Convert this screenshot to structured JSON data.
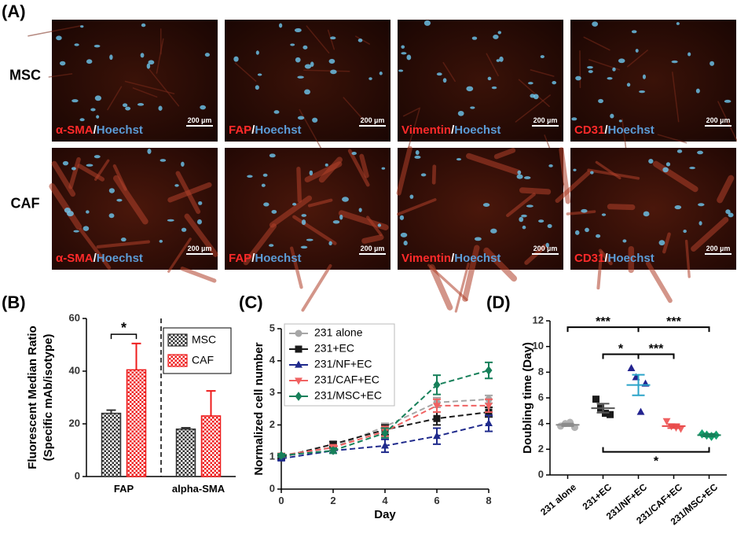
{
  "figure": {
    "label": "(A)",
    "rows": [
      "MSC",
      "CAF"
    ],
    "images": [
      [
        {
          "marker": "α-SMA",
          "separator": "/",
          "stain": "Hoechst",
          "scale": "200 µm"
        },
        {
          "marker": "FAP",
          "separator": "/",
          "stain": "Hoechst",
          "scale": "200 µm"
        },
        {
          "marker": "Vimentin",
          "separator": "/",
          "stain": "Hoechst",
          "scale": "200 µm"
        },
        {
          "marker": "CD31",
          "separator": "/",
          "stain": "Hoechst",
          "scale": "200 µm"
        }
      ],
      [
        {
          "marker": "α-SMA",
          "separator": "/",
          "stain": "Hoechst",
          "scale": "200 µm"
        },
        {
          "marker": "FAP",
          "separator": "/",
          "stain": "Hoechst",
          "scale": "200 µm"
        },
        {
          "marker": "Vimentin",
          "separator": "/",
          "stain": "Hoechst",
          "scale": "200 µm"
        },
        {
          "marker": "CD31",
          "separator": "/",
          "stain": "Hoechst",
          "scale": "200 µm"
        }
      ]
    ]
  },
  "chart_data": [
    {
      "type": "bar",
      "panel_label": "(B)",
      "ylabel": [
        "Fluorescent Median Ratio",
        "(Specific mAb/isotype)"
      ],
      "categories": [
        "FAP",
        "alpha-SMA"
      ],
      "series": [
        {
          "name": "MSC",
          "color": "#333333",
          "values": [
            24,
            18
          ],
          "errors": [
            1.2,
            0.5
          ]
        },
        {
          "name": "CAF",
          "color": "#ee1c1c",
          "values": [
            40.5,
            23
          ],
          "errors": [
            10,
            9.5
          ]
        }
      ],
      "ylim": [
        0,
        60
      ],
      "yticks": [
        0,
        20,
        40,
        60
      ],
      "legend": "upper right",
      "divider": true,
      "annotations": [
        {
          "label": "*",
          "y": 54,
          "category": 0
        }
      ]
    },
    {
      "type": "line",
      "panel_label": "(C)",
      "xlabel": "Day",
      "ylabel": "Normalized cell number",
      "x": [
        0,
        2,
        4,
        6,
        8
      ],
      "series": [
        {
          "name": "231 alone",
          "color": "#a6a6a6",
          "marker": "circle",
          "values": [
            1.0,
            1.3,
            1.95,
            2.7,
            2.8
          ],
          "errors": [
            0.05,
            0.1,
            0.1,
            0.15,
            0.12
          ]
        },
        {
          "name": "231+EC",
          "color": "#1a1a1a",
          "marker": "square",
          "values": [
            1.0,
            1.4,
            1.85,
            2.2,
            2.4
          ],
          "errors": [
            0.05,
            0.08,
            0.15,
            0.2,
            0.15
          ]
        },
        {
          "name": "231/NF+EC",
          "color": "#1f2a8c",
          "marker": "triangle",
          "values": [
            0.95,
            1.2,
            1.35,
            1.65,
            2.05
          ],
          "errors": [
            0.05,
            0.08,
            0.2,
            0.25,
            0.25
          ]
        },
        {
          "name": "231/CAF+EC",
          "color": "#f06262",
          "marker": "triangle-down",
          "values": [
            1.05,
            1.3,
            1.8,
            2.6,
            2.6
          ],
          "errors": [
            0.05,
            0.08,
            0.15,
            0.2,
            0.2
          ]
        },
        {
          "name": "231/MSC+EC",
          "color": "#17805a",
          "marker": "diamond",
          "values": [
            1.05,
            1.2,
            1.75,
            3.25,
            3.7
          ],
          "errors": [
            0.05,
            0.08,
            0.15,
            0.3,
            0.25
          ]
        }
      ],
      "xlim": [
        0,
        8
      ],
      "xticks": [
        0,
        2,
        4,
        6,
        8
      ],
      "ylim": [
        0,
        5
      ],
      "yticks": [
        0,
        1,
        2,
        3,
        4,
        5
      ],
      "legend": "upper left"
    },
    {
      "type": "dotplot",
      "panel_label": "(D)",
      "ylabel": "Doubling time (Day)",
      "categories": [
        "231 alone",
        "231+EC",
        "231/NF+EC",
        "231/CAF+EC",
        "231/MSC+EC"
      ],
      "groups": [
        {
          "color": "#b3b3b3",
          "line_color": "#8c8c8c",
          "marker": "circle",
          "values": [
            3.8,
            4.0,
            4.1,
            3.7
          ],
          "mean": 3.9,
          "sem": 0.1
        },
        {
          "color": "#1a1a1a",
          "line_color": "#555555",
          "marker": "square",
          "values": [
            5.9,
            5.2,
            4.8,
            4.7
          ],
          "mean": 5.2,
          "sem": 0.35
        },
        {
          "color": "#23238f",
          "line_color": "#2aa3c8",
          "marker": "triangle",
          "values": [
            8.3,
            7.6,
            4.9,
            7.1
          ],
          "mean": 7.0,
          "sem": 0.8
        },
        {
          "color": "#f06262",
          "line_color": "#e84a4a",
          "marker": "triangle-down",
          "values": [
            4.2,
            3.8,
            3.7,
            3.6
          ],
          "mean": 3.8,
          "sem": 0.15
        },
        {
          "color": "#17a070",
          "line_color": "#17805a",
          "marker": "diamond",
          "values": [
            3.2,
            3.1,
            3.0,
            3.1
          ],
          "mean": 3.1,
          "sem": 0.1
        }
      ],
      "ylim": [
        0,
        12
      ],
      "yticks": [
        0,
        2,
        4,
        6,
        8,
        10,
        12
      ],
      "annotations": [
        {
          "label": "***",
          "y": 11.5,
          "from": 0,
          "to": 2,
          "dir": "down"
        },
        {
          "label": "***",
          "y": 11.5,
          "from": 2,
          "to": 4,
          "dir": "down"
        },
        {
          "label": "*",
          "y": 9.4,
          "from": 1,
          "to": 2,
          "dir": "down"
        },
        {
          "label": "***",
          "y": 9.4,
          "from": 2,
          "to": 3,
          "dir": "down"
        },
        {
          "label": "*",
          "y": 1.8,
          "from": 1,
          "to": 4,
          "dir": "up"
        }
      ]
    }
  ]
}
